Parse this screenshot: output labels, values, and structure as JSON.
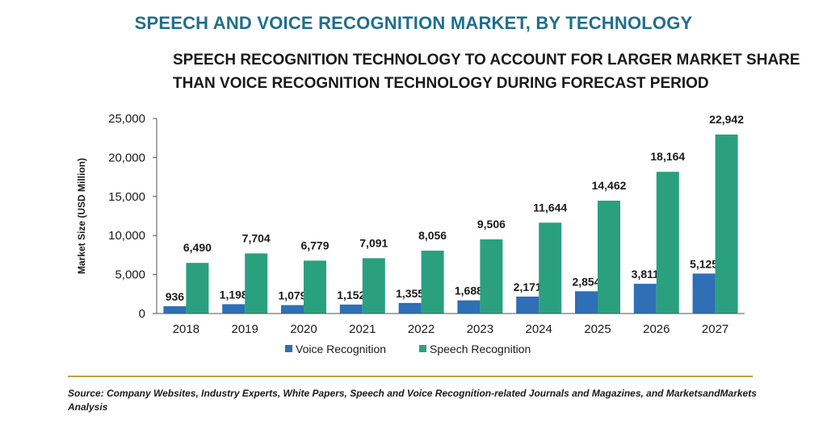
{
  "title": "SPEECH AND VOICE RECOGNITION MARKET, BY TECHNOLOGY",
  "subtitle_line1": "SPEECH RECOGNITION TECHNOLOGY TO ACCOUNT FOR LARGER MARKET SHARE",
  "subtitle_line2": "THAN VOICE RECOGNITION TECHNOLOGY DURING FORECAST PERIOD",
  "source": "Source: Company Websites, Industry Experts, White Papers, Speech and Voice Recognition-related Journals and Magazines, and MarketsandMarkets Analysis",
  "chart_data": {
    "type": "bar",
    "ylabel": "Market Size (USD Million)",
    "ylim": [
      0,
      25000
    ],
    "yticks": [
      0,
      5000,
      10000,
      15000,
      20000,
      25000
    ],
    "ytick_labels": [
      "0",
      "5,000",
      "10,000",
      "15,000",
      "20,000",
      "25,000"
    ],
    "categories": [
      "2018",
      "2019",
      "2020",
      "2021",
      "2022",
      "2023",
      "2024",
      "2025",
      "2026",
      "2027"
    ],
    "legend_position": "bottom",
    "series": [
      {
        "name": "Voice Recognition",
        "color": "#2e6fb5",
        "values": [
          936,
          1198,
          1079,
          1152,
          1355,
          1688,
          2171,
          2854,
          3811,
          5125
        ],
        "labels": [
          "936",
          "1,198",
          "1,079",
          "1,152",
          "1,355",
          "1,688",
          "2,171",
          "2,854",
          "3,811",
          "5,125"
        ]
      },
      {
        "name": "Speech Recognition",
        "color": "#2aa07e",
        "values": [
          6490,
          7704,
          6779,
          7091,
          8056,
          9506,
          11644,
          14462,
          18164,
          22942
        ],
        "labels": [
          "6,490",
          "7,704",
          "6,779",
          "7,091",
          "8,056",
          "9,506",
          "11,644",
          "14,462",
          "18,164",
          "22,942"
        ]
      }
    ]
  }
}
